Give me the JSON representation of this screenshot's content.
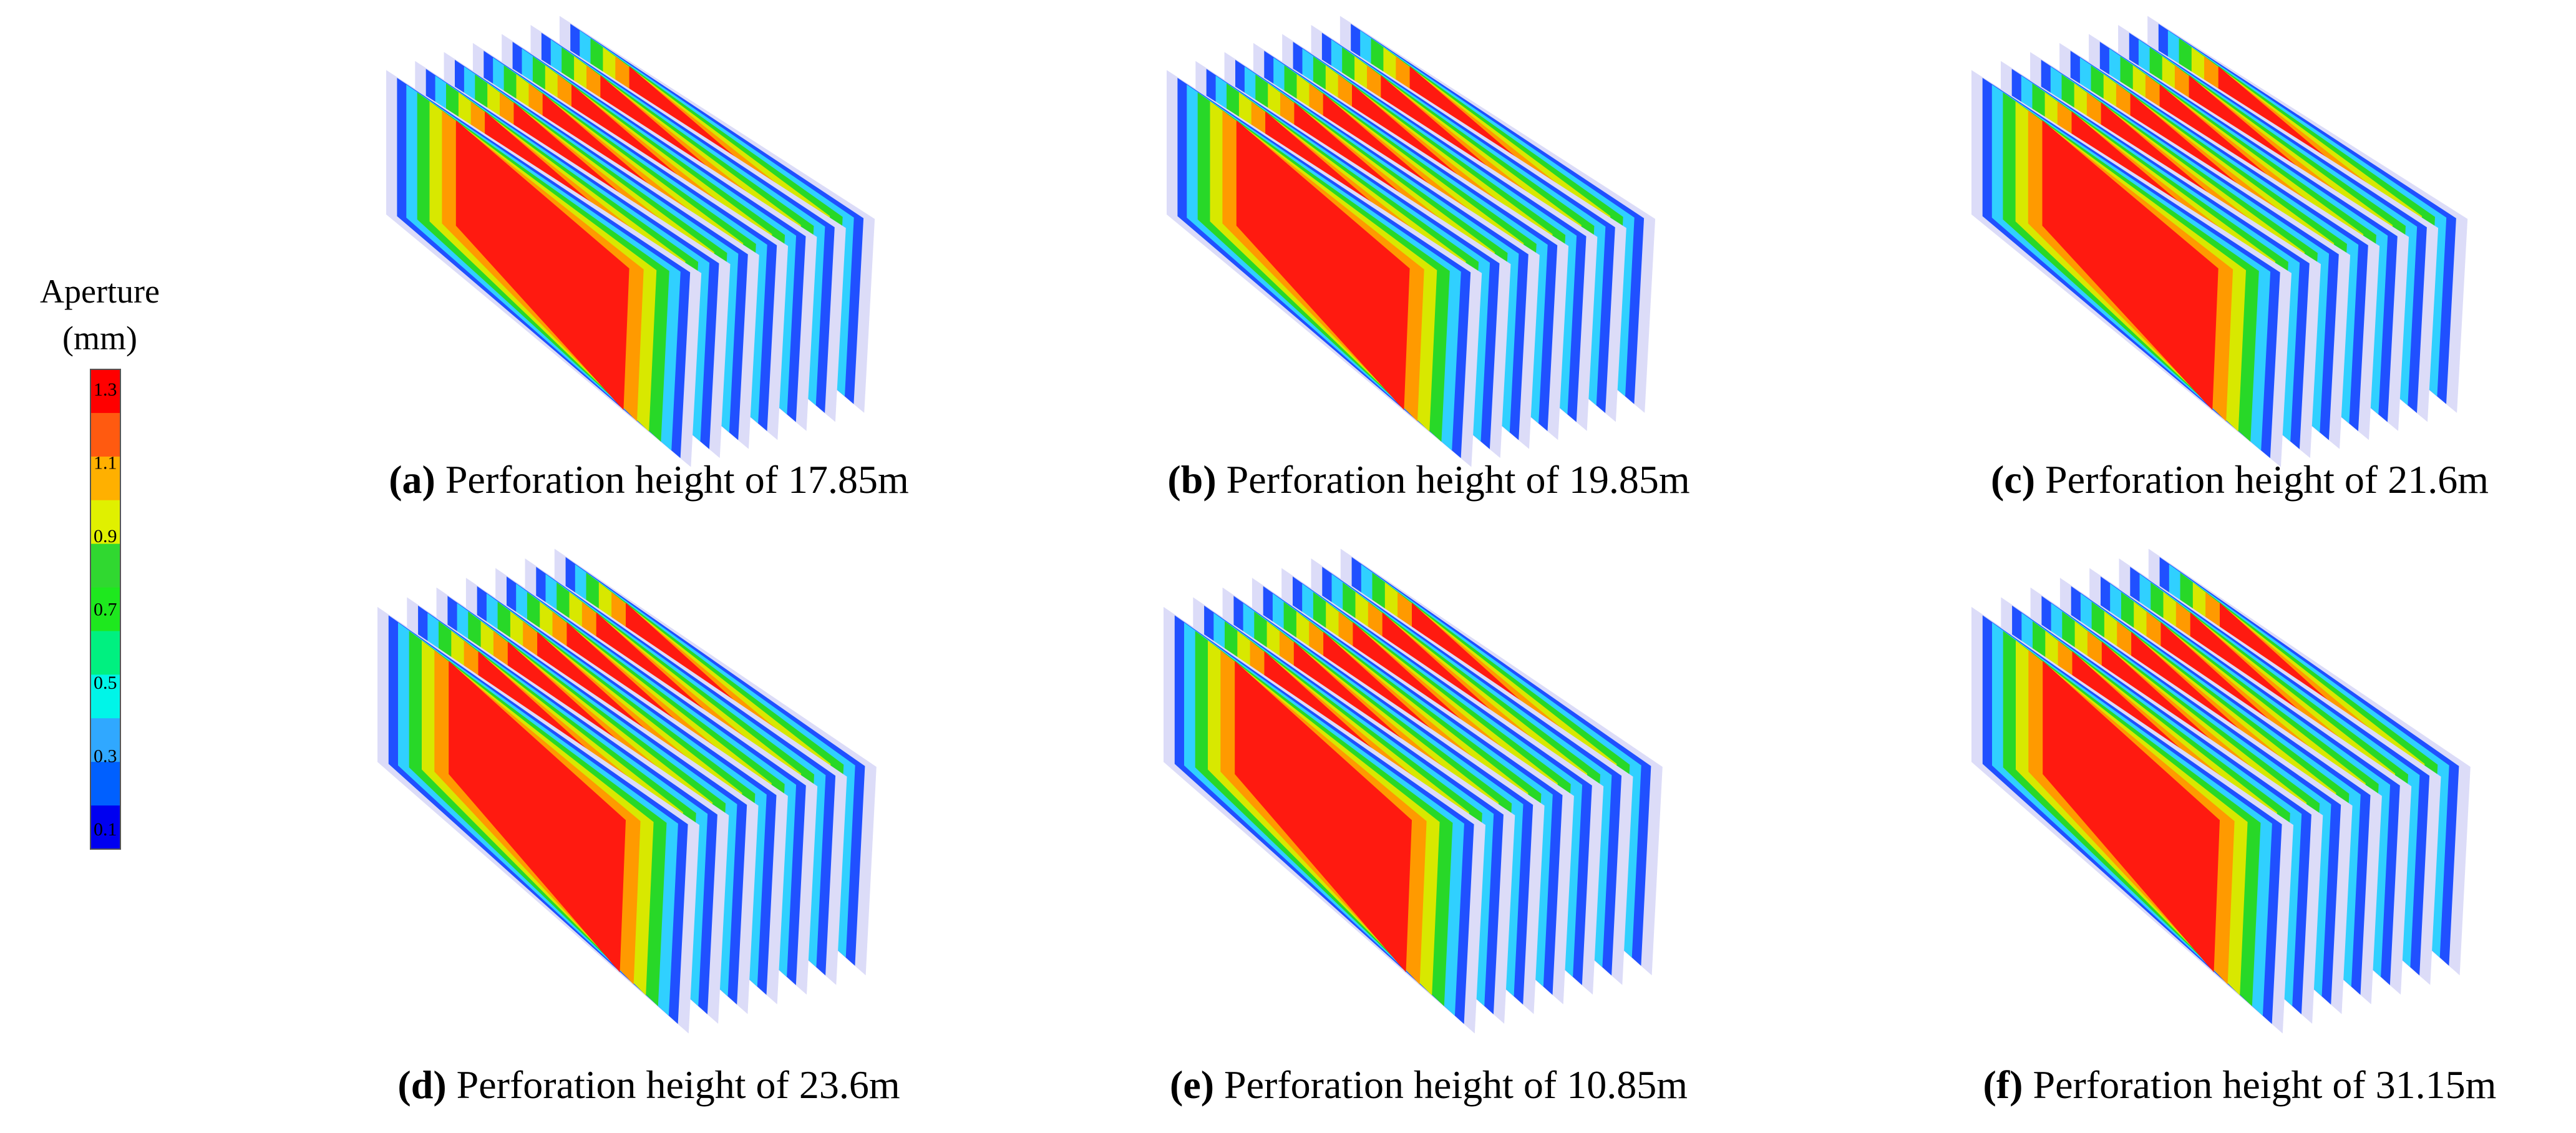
{
  "legend": {
    "title": [
      "Aperture",
      "(mm)"
    ],
    "ticks": [
      1.3,
      1.1,
      0.9,
      0.7,
      0.5,
      0.3,
      0.1
    ],
    "colors": [
      "#ff0000",
      "#ff5a10",
      "#ffb000",
      "#e0f000",
      "#30d830",
      "#1ee81e",
      "#00f080",
      "#00f5e8",
      "#30a8ff",
      "#0060ff",
      "#0000f0"
    ]
  },
  "panels": [
    {
      "label": "(a)",
      "caption": "Perforation height of 17.85m"
    },
    {
      "label": "(b)",
      "caption": "Perforation height of 19.85m"
    },
    {
      "label": "(c)",
      "caption": "Perforation height of 21.6m"
    },
    {
      "label": "(d)",
      "caption": "Perforation height of 23.6m"
    },
    {
      "label": "(e)",
      "caption": "Perforation height of 10.85m"
    },
    {
      "label": "(f)",
      "caption": "Perforation height of 31.15m"
    }
  ]
}
